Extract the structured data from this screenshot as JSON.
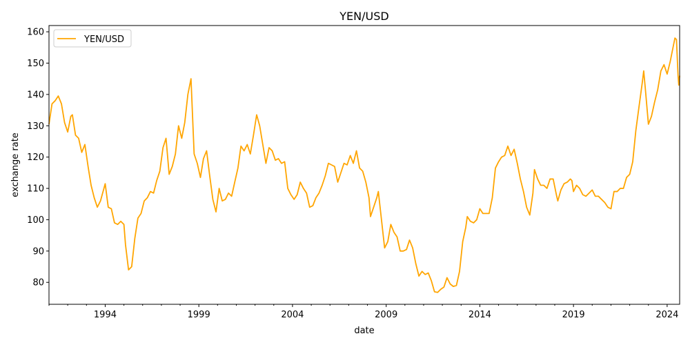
{
  "chart_data": {
    "type": "line",
    "title": "YEN/USD",
    "xlabel": "date",
    "ylabel": "exchange rate",
    "xlim": [
      "1991-01-01",
      "2024-09-01"
    ],
    "ylim": [
      73,
      162
    ],
    "grid": false,
    "legend_placement": "top-left",
    "x_ticks": [
      "1994",
      "1999",
      "2004",
      "2009",
      "2014",
      "2019",
      "2024"
    ],
    "y_ticks": [
      80,
      90,
      100,
      110,
      120,
      130,
      140,
      150,
      160
    ],
    "series": [
      {
        "name": "YEN/USD",
        "color": "#FFA500",
        "points": [
          [
            "1991-01-01",
            130.5
          ],
          [
            "1991-03-01",
            137.0
          ],
          [
            "1991-05-01",
            138.0
          ],
          [
            "1991-07-01",
            139.5
          ],
          [
            "1991-09-01",
            137.0
          ],
          [
            "1991-11-01",
            131.0
          ],
          [
            "1992-01-01",
            128.0
          ],
          [
            "1992-03-01",
            133.0
          ],
          [
            "1992-04-01",
            133.5
          ],
          [
            "1992-06-01",
            127.0
          ],
          [
            "1992-08-01",
            126.0
          ],
          [
            "1992-10-01",
            121.5
          ],
          [
            "1992-12-01",
            124.0
          ],
          [
            "1993-02-01",
            117.0
          ],
          [
            "1993-04-01",
            111.0
          ],
          [
            "1993-06-01",
            107.0
          ],
          [
            "1993-08-01",
            104.0
          ],
          [
            "1993-10-01",
            106.0
          ],
          [
            "1994-01-01",
            111.5
          ],
          [
            "1994-03-01",
            104.0
          ],
          [
            "1994-05-01",
            103.5
          ],
          [
            "1994-07-01",
            99.0
          ],
          [
            "1994-09-01",
            98.5
          ],
          [
            "1994-11-01",
            99.5
          ],
          [
            "1995-01-01",
            98.5
          ],
          [
            "1995-02-01",
            92.0
          ],
          [
            "1995-04-01",
            84.0
          ],
          [
            "1995-06-01",
            85.0
          ],
          [
            "1995-08-01",
            94.0
          ],
          [
            "1995-10-01",
            100.5
          ],
          [
            "1995-12-01",
            102.0
          ],
          [
            "1996-02-01",
            106.0
          ],
          [
            "1996-04-01",
            107.0
          ],
          [
            "1996-06-01",
            109.0
          ],
          [
            "1996-08-01",
            108.5
          ],
          [
            "1996-10-01",
            112.5
          ],
          [
            "1996-12-01",
            115.5
          ],
          [
            "1997-02-01",
            123.0
          ],
          [
            "1997-04-01",
            126.0
          ],
          [
            "1997-06-01",
            114.5
          ],
          [
            "1997-08-01",
            117.0
          ],
          [
            "1997-10-01",
            121.0
          ],
          [
            "1997-12-01",
            130.0
          ],
          [
            "1998-02-01",
            126.0
          ],
          [
            "1998-04-01",
            131.0
          ],
          [
            "1998-06-01",
            140.0
          ],
          [
            "1998-08-01",
            145.0
          ],
          [
            "1998-10-01",
            121.0
          ],
          [
            "1998-12-01",
            118.0
          ],
          [
            "1999-02-01",
            113.5
          ],
          [
            "1999-04-01",
            119.5
          ],
          [
            "1999-06-01",
            122.0
          ],
          [
            "1999-08-01",
            114.0
          ],
          [
            "1999-10-01",
            106.5
          ],
          [
            "1999-12-01",
            102.5
          ],
          [
            "2000-02-01",
            110.0
          ],
          [
            "2000-04-01",
            106.0
          ],
          [
            "2000-06-01",
            106.5
          ],
          [
            "2000-08-01",
            108.5
          ],
          [
            "2000-10-01",
            107.5
          ],
          [
            "2000-12-01",
            112.0
          ],
          [
            "2001-02-01",
            116.5
          ],
          [
            "2001-04-01",
            123.5
          ],
          [
            "2001-06-01",
            122.0
          ],
          [
            "2001-08-01",
            124.0
          ],
          [
            "2001-10-01",
            121.0
          ],
          [
            "2001-12-01",
            127.0
          ],
          [
            "2002-02-01",
            133.5
          ],
          [
            "2002-04-01",
            130.0
          ],
          [
            "2002-06-01",
            124.0
          ],
          [
            "2002-08-01",
            118.0
          ],
          [
            "2002-10-01",
            123.0
          ],
          [
            "2002-12-01",
            122.0
          ],
          [
            "2003-02-01",
            119.0
          ],
          [
            "2003-04-01",
            119.5
          ],
          [
            "2003-06-01",
            118.0
          ],
          [
            "2003-08-01",
            118.5
          ],
          [
            "2003-10-01",
            110.0
          ],
          [
            "2003-12-01",
            108.0
          ],
          [
            "2004-02-01",
            106.5
          ],
          [
            "2004-04-01",
            108.0
          ],
          [
            "2004-06-01",
            112.0
          ],
          [
            "2004-08-01",
            110.0
          ],
          [
            "2004-10-01",
            108.5
          ],
          [
            "2004-12-01",
            104.0
          ],
          [
            "2005-02-01",
            104.5
          ],
          [
            "2005-04-01",
            107.0
          ],
          [
            "2005-06-01",
            108.5
          ],
          [
            "2005-08-01",
            111.0
          ],
          [
            "2005-10-01",
            114.0
          ],
          [
            "2005-12-01",
            118.0
          ],
          [
            "2006-02-01",
            117.5
          ],
          [
            "2006-04-01",
            117.0
          ],
          [
            "2006-06-01",
            112.0
          ],
          [
            "2006-08-01",
            115.0
          ],
          [
            "2006-10-01",
            118.0
          ],
          [
            "2006-12-01",
            117.5
          ],
          [
            "2007-02-01",
            120.5
          ],
          [
            "2007-04-01",
            118.0
          ],
          [
            "2007-06-01",
            122.0
          ],
          [
            "2007-08-01",
            116.5
          ],
          [
            "2007-10-01",
            115.5
          ],
          [
            "2007-12-01",
            112.0
          ],
          [
            "2008-02-01",
            107.0
          ],
          [
            "2008-03-01",
            101.0
          ],
          [
            "2008-05-01",
            104.0
          ],
          [
            "2008-07-01",
            107.0
          ],
          [
            "2008-08-01",
            109.0
          ],
          [
            "2008-10-01",
            100.0
          ],
          [
            "2008-12-01",
            91.0
          ],
          [
            "2009-02-01",
            93.0
          ],
          [
            "2009-04-01",
            98.5
          ],
          [
            "2009-06-01",
            96.0
          ],
          [
            "2009-08-01",
            94.5
          ],
          [
            "2009-10-01",
            90.0
          ],
          [
            "2009-12-01",
            90.0
          ],
          [
            "2010-02-01",
            90.5
          ],
          [
            "2010-04-01",
            93.5
          ],
          [
            "2010-06-01",
            91.0
          ],
          [
            "2010-08-01",
            86.0
          ],
          [
            "2010-10-01",
            82.0
          ],
          [
            "2010-12-01",
            83.5
          ],
          [
            "2011-02-01",
            82.5
          ],
          [
            "2011-04-01",
            83.0
          ],
          [
            "2011-06-01",
            80.5
          ],
          [
            "2011-08-01",
            77.0
          ],
          [
            "2011-10-01",
            76.8
          ],
          [
            "2011-12-01",
            77.8
          ],
          [
            "2012-02-01",
            78.5
          ],
          [
            "2012-04-01",
            81.5
          ],
          [
            "2012-06-01",
            79.5
          ],
          [
            "2012-08-01",
            78.7
          ],
          [
            "2012-10-01",
            79.0
          ],
          [
            "2012-12-01",
            83.5
          ],
          [
            "2013-02-01",
            93.0
          ],
          [
            "2013-04-01",
            97.5
          ],
          [
            "2013-05-01",
            101.0
          ],
          [
            "2013-07-01",
            99.5
          ],
          [
            "2013-09-01",
            99.0
          ],
          [
            "2013-11-01",
            100.0
          ],
          [
            "2014-01-01",
            103.5
          ],
          [
            "2014-03-01",
            102.0
          ],
          [
            "2014-05-01",
            102.0
          ],
          [
            "2014-07-01",
            102.0
          ],
          [
            "2014-09-01",
            107.0
          ],
          [
            "2014-11-01",
            116.5
          ],
          [
            "2015-01-01",
            118.5
          ],
          [
            "2015-03-01",
            120.0
          ],
          [
            "2015-05-01",
            120.5
          ],
          [
            "2015-07-01",
            123.5
          ],
          [
            "2015-09-01",
            120.5
          ],
          [
            "2015-11-01",
            122.5
          ],
          [
            "2016-01-01",
            118.0
          ],
          [
            "2016-03-01",
            113.0
          ],
          [
            "2016-05-01",
            109.0
          ],
          [
            "2016-07-01",
            104.0
          ],
          [
            "2016-09-01",
            101.5
          ],
          [
            "2016-11-01",
            108.5
          ],
          [
            "2016-12-01",
            116.0
          ],
          [
            "2017-02-01",
            113.0
          ],
          [
            "2017-04-01",
            111.0
          ],
          [
            "2017-06-01",
            111.0
          ],
          [
            "2017-08-01",
            110.0
          ],
          [
            "2017-10-01",
            113.0
          ],
          [
            "2017-12-01",
            113.0
          ],
          [
            "2018-02-01",
            108.0
          ],
          [
            "2018-03-01",
            106.0
          ],
          [
            "2018-05-01",
            109.5
          ],
          [
            "2018-07-01",
            111.5
          ],
          [
            "2018-09-01",
            112.0
          ],
          [
            "2018-11-01",
            113.0
          ],
          [
            "2018-12-01",
            112.5
          ],
          [
            "2019-01-01",
            109.0
          ],
          [
            "2019-03-01",
            111.0
          ],
          [
            "2019-05-01",
            110.0
          ],
          [
            "2019-07-01",
            108.0
          ],
          [
            "2019-09-01",
            107.5
          ],
          [
            "2019-11-01",
            108.5
          ],
          [
            "2020-01-01",
            109.5
          ],
          [
            "2020-03-01",
            107.5
          ],
          [
            "2020-05-01",
            107.5
          ],
          [
            "2020-07-01",
            106.5
          ],
          [
            "2020-09-01",
            105.5
          ],
          [
            "2020-11-01",
            104.0
          ],
          [
            "2021-01-01",
            103.5
          ],
          [
            "2021-03-01",
            109.0
          ],
          [
            "2021-05-01",
            109.0
          ],
          [
            "2021-07-01",
            110.0
          ],
          [
            "2021-09-01",
            110.0
          ],
          [
            "2021-11-01",
            113.5
          ],
          [
            "2022-01-01",
            114.5
          ],
          [
            "2022-03-01",
            118.5
          ],
          [
            "2022-05-01",
            128.5
          ],
          [
            "2022-07-01",
            136.0
          ],
          [
            "2022-09-01",
            143.5
          ],
          [
            "2022-10-01",
            147.5
          ],
          [
            "2022-11-01",
            142.0
          ],
          [
            "2023-01-01",
            130.5
          ],
          [
            "2023-03-01",
            133.0
          ],
          [
            "2023-05-01",
            137.5
          ],
          [
            "2023-07-01",
            141.5
          ],
          [
            "2023-09-01",
            147.5
          ],
          [
            "2023-11-01",
            149.5
          ],
          [
            "2024-01-01",
            146.5
          ],
          [
            "2024-03-01",
            150.5
          ],
          [
            "2024-05-01",
            155.5
          ],
          [
            "2024-06-01",
            158.0
          ],
          [
            "2024-07-01",
            157.5
          ],
          [
            "2024-08-01",
            146.0
          ],
          [
            "2024-08-15",
            143.0
          ],
          [
            "2024-09-01",
            146.0
          ]
        ]
      }
    ]
  }
}
